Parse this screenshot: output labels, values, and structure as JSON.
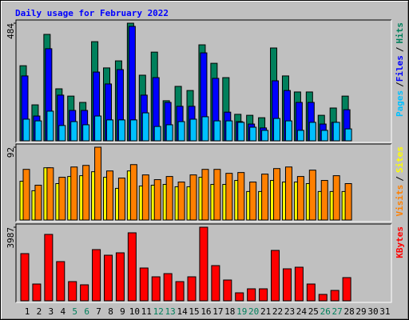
{
  "chart_data": [
    {
      "type": "bar",
      "title": "Daily usage for February 2022",
      "categories": [
        "1",
        "2",
        "3",
        "4",
        "5",
        "6",
        "7",
        "8",
        "9",
        "10",
        "11",
        "12",
        "13",
        "14",
        "15",
        "16",
        "17",
        "18",
        "19",
        "20",
        "21",
        "22",
        "23",
        "24",
        "25",
        "26",
        "27",
        "28",
        "29",
        "30",
        "31"
      ],
      "category_colors": [
        "#000000",
        "#000000",
        "#000000",
        "#000000",
        "#00805c",
        "#00805c",
        "#000000",
        "#000000",
        "#000000",
        "#000000",
        "#000000",
        "#00805c",
        "#00805c",
        "#000000",
        "#000000",
        "#000000",
        "#000000",
        "#000000",
        "#00805c",
        "#00805c",
        "#000000",
        "#000000",
        "#000000",
        "#000000",
        "#000000",
        "#00805c",
        "#00805c",
        "#000000",
        "#000000",
        "#000000",
        "#000000"
      ],
      "legend_separator": "/",
      "ylim": [
        0,
        484
      ],
      "yticks": [
        484
      ],
      "series": [
        {
          "name": "Hits",
          "color": "#00805c",
          "values": [
            309,
            148,
            438,
            214,
            184,
            158,
            408,
            300,
            329,
            484,
            270,
            365,
            165,
            224,
            207,
            395,
            319,
            260,
            109,
            105,
            95,
            382,
            267,
            201,
            201,
            105,
            135,
            184,
            null,
            null,
            null
          ]
        },
        {
          "name": "Files",
          "color": "#0000ff",
          "values": [
            267,
            102,
            379,
            188,
            125,
            125,
            283,
            234,
            293,
            471,
            188,
            260,
            158,
            142,
            142,
            362,
            257,
            118,
            79,
            69,
            53,
            247,
            207,
            158,
            158,
            69,
            76,
            128,
            null,
            null,
            null
          ]
        },
        {
          "name": "Pages",
          "color": "#00c0ff",
          "values": [
            89,
            82,
            122,
            63,
            79,
            66,
            102,
            86,
            86,
            86,
            115,
            59,
            66,
            79,
            89,
            99,
            82,
            82,
            76,
            56,
            43,
            92,
            82,
            43,
            76,
            43,
            76,
            49,
            null,
            null,
            null
          ]
        }
      ]
    },
    {
      "type": "bar",
      "legend_separator": "/",
      "ylim": [
        0,
        92
      ],
      "yticks": [
        92
      ],
      "series": [
        {
          "name": "Sites",
          "color": "#ffff00",
          "values": [
            49,
            37,
            66,
            46,
            55,
            56,
            61,
            54,
            40,
            62,
            43,
            44,
            45,
            42,
            42,
            54,
            45,
            45,
            50,
            36,
            36,
            50,
            48,
            48,
            46,
            36,
            36,
            36,
            null,
            null,
            null
          ]
        },
        {
          "name": "Visits",
          "color": "#ff8000",
          "values": [
            64,
            44,
            66,
            54,
            67,
            69,
            92,
            62,
            53,
            70,
            57,
            51,
            55,
            48,
            57,
            64,
            64,
            59,
            60,
            48,
            58,
            65,
            67,
            55,
            63,
            50,
            56,
            46,
            null,
            null,
            null
          ]
        }
      ]
    },
    {
      "type": "bar",
      "ylim": [
        0,
        3987
      ],
      "yticks": [
        3987
      ],
      "series": [
        {
          "name": "KBytes",
          "color": "#ff0000",
          "values": [
            2557,
            910,
            3597,
            2124,
            1040,
            867,
            2774,
            2470,
            2600,
            3684,
            1777,
            1300,
            1473,
            1040,
            1300,
            3987,
            1907,
            1127,
            433,
            650,
            650,
            2730,
            1733,
            1820,
            910,
            347,
            563,
            1257,
            null,
            null,
            null
          ]
        }
      ]
    }
  ]
}
